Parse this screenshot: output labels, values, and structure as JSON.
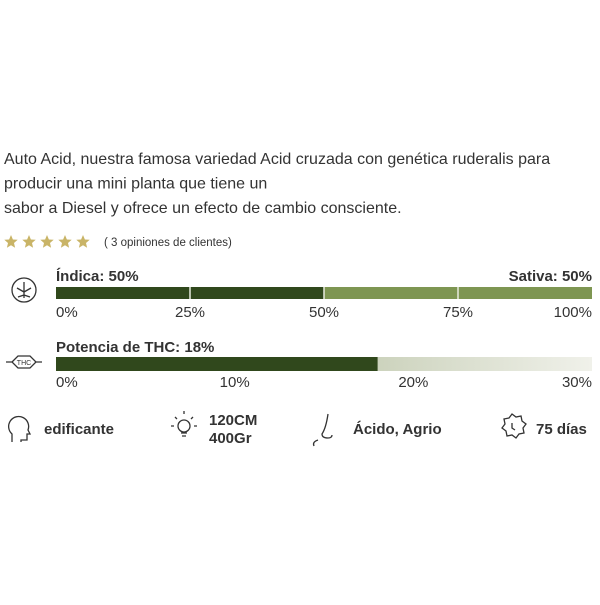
{
  "description": [
    "Auto Acid, nuestra famosa variedad Acid cruzada con genética ruderalis para",
    "producir una mini planta que tiene un",
    "sabor a Diesel y ofrece un efecto de cambio consciente."
  ],
  "rating": {
    "stars": 5,
    "label": "( 3 opiniones de clientes)"
  },
  "indica_sativa": {
    "left_label": "Índica: 50%",
    "right_label": "Sativa: 50%",
    "value": 50,
    "xlim": [
      0,
      100
    ],
    "ticks": [
      {
        "value": 0,
        "label": "0%"
      },
      {
        "value": 25,
        "label": "25%"
      },
      {
        "value": 50,
        "label": "50%"
      },
      {
        "value": 75,
        "label": "75%"
      },
      {
        "value": 100,
        "label": "100%"
      }
    ]
  },
  "thc": {
    "label": "Potencia de THC: 18%",
    "value": 18,
    "xlim": [
      0,
      30
    ],
    "ticks": [
      {
        "value": 0,
        "label": "0%"
      },
      {
        "value": 10,
        "label": "10%"
      },
      {
        "value": 20,
        "label": "20%"
      },
      {
        "value": 30,
        "label": "30%"
      }
    ]
  },
  "features": [
    {
      "lines": [
        "edificante"
      ]
    },
    {
      "lines": [
        "120CM",
        "400Gr"
      ]
    },
    {
      "lines": [
        "Ácido, Agrio"
      ]
    },
    {
      "lines": [
        "75 días"
      ]
    }
  ]
}
